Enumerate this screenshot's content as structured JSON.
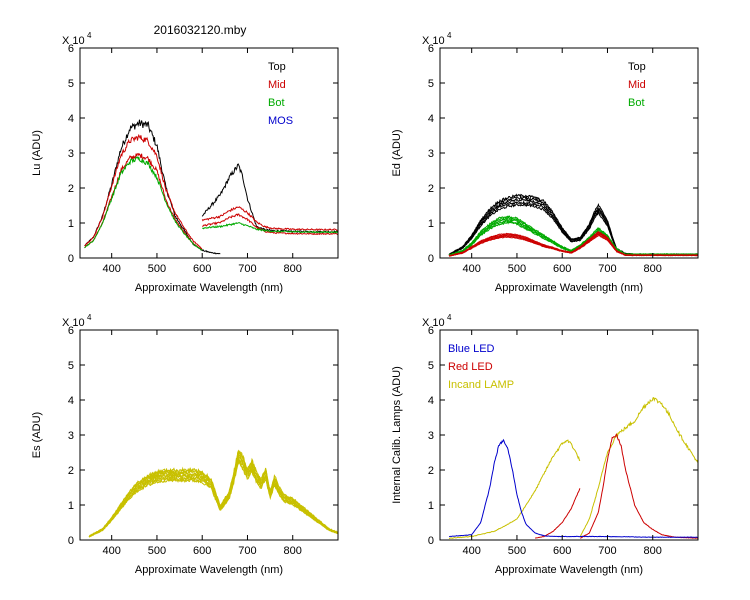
{
  "figure_title": "2016032120.mby",
  "chart_data": [
    {
      "id": "lu",
      "type": "line",
      "title": "2016032120.mby",
      "xlabel": "Approximate Wavelength (nm)",
      "ylabel": "Lu (ADU)",
      "multiplier": "X 10",
      "exponent": "4",
      "xlim": [
        330,
        900
      ],
      "ylim": [
        0,
        6
      ],
      "xticks": [
        400,
        500,
        600,
        700,
        800
      ],
      "yticks": [
        0,
        1,
        2,
        3,
        4,
        5,
        6
      ],
      "legend": [
        {
          "label": "Top",
          "color": "#000000"
        },
        {
          "label": "Mid",
          "color": "#cc0000"
        },
        {
          "label": "Bot",
          "color": "#00aa00"
        },
        {
          "label": "MOS",
          "color": "#0000cc"
        }
      ],
      "series": [
        {
          "name": "Top",
          "color": "#000000",
          "jitter": 0.06,
          "copies": 1,
          "segments": [
            {
              "x": [
                340,
                360,
                380,
                400,
                420,
                440,
                460,
                480,
                500,
                520,
                540,
                560,
                580,
                600,
                620,
                640
              ],
              "y": [
                0.35,
                0.6,
                1.2,
                2.1,
                3.1,
                3.7,
                3.85,
                3.8,
                3.2,
                2.0,
                1.2,
                0.8,
                0.4,
                0.22,
                0.15,
                0.12
              ]
            },
            {
              "x": [
                600,
                620,
                640,
                660,
                680,
                690,
                700,
                720,
                740,
                760,
                800,
                850,
                900
              ],
              "y": [
                1.2,
                1.5,
                1.8,
                2.3,
                2.65,
                2.3,
                1.7,
                0.9,
                0.8,
                0.78,
                0.76,
                0.75,
                0.75
              ]
            }
          ]
        },
        {
          "name": "Mid",
          "color": "#cc0000",
          "jitter": 0.05,
          "copies": 2,
          "segments": [
            {
              "x": [
                340,
                360,
                380,
                400,
                420,
                440,
                460,
                480,
                500,
                520,
                540,
                560,
                580,
                600
              ],
              "y": [
                0.33,
                0.55,
                1.1,
                1.9,
                2.7,
                3.1,
                3.2,
                3.1,
                2.7,
                1.8,
                1.2,
                0.8,
                0.45,
                0.25
              ]
            },
            {
              "x": [
                600,
                620,
                640,
                660,
                680,
                700,
                720,
                740,
                760,
                800,
                850,
                900
              ],
              "y": [
                1.0,
                1.05,
                1.1,
                1.25,
                1.35,
                1.2,
                0.95,
                0.82,
                0.78,
                0.76,
                0.75,
                0.75
              ]
            }
          ]
        },
        {
          "name": "Bot",
          "color": "#00aa00",
          "jitter": 0.05,
          "copies": 1,
          "segments": [
            {
              "x": [
                340,
                360,
                380,
                400,
                420,
                440,
                460,
                480,
                500,
                520,
                540,
                560,
                580,
                600
              ],
              "y": [
                0.3,
                0.5,
                1.0,
                1.7,
                2.4,
                2.75,
                2.85,
                2.7,
                2.3,
                1.6,
                1.05,
                0.7,
                0.4,
                0.22
              ]
            },
            {
              "x": [
                600,
                620,
                640,
                660,
                680,
                700,
                720,
                740,
                760,
                800,
                850,
                900
              ],
              "y": [
                0.85,
                0.88,
                0.9,
                0.95,
                1.0,
                0.92,
                0.82,
                0.78,
                0.76,
                0.75,
                0.74,
                0.74
              ]
            }
          ]
        }
      ]
    },
    {
      "id": "ed",
      "type": "line",
      "xlabel": "Approximate Wavelength (nm)",
      "ylabel": "Ed  (ADU)",
      "multiplier": "X 10",
      "exponent": "4",
      "xlim": [
        330,
        900
      ],
      "ylim": [
        0,
        6
      ],
      "xticks": [
        400,
        500,
        600,
        700,
        800
      ],
      "yticks": [
        0,
        1,
        2,
        3,
        4,
        5,
        6
      ],
      "legend": [
        {
          "label": "Top",
          "color": "#000000"
        },
        {
          "label": "Mid",
          "color": "#cc0000"
        },
        {
          "label": "Bot",
          "color": "#00aa00"
        }
      ],
      "series": [
        {
          "name": "Top",
          "color": "#000000",
          "jitter": 0.04,
          "copies": 5,
          "segments": [
            {
              "x": [
                350,
                380,
                400,
                420,
                440,
                460,
                480,
                500,
                520,
                540,
                560,
                580,
                600,
                620,
                640,
                660,
                670,
                680,
                690,
                700,
                710,
                720,
                740,
                760,
                800,
                850,
                900
              ],
              "y": [
                0.1,
                0.3,
                0.6,
                1.0,
                1.3,
                1.5,
                1.6,
                1.65,
                1.65,
                1.6,
                1.5,
                1.2,
                0.8,
                0.5,
                0.55,
                0.9,
                1.2,
                1.4,
                1.2,
                1.0,
                0.6,
                0.25,
                0.12,
                0.1,
                0.1,
                0.1,
                0.1
              ]
            }
          ]
        },
        {
          "name": "Bot",
          "color": "#00aa00",
          "jitter": 0.05,
          "copies": 5,
          "segments": [
            {
              "x": [
                350,
                380,
                400,
                420,
                440,
                460,
                480,
                500,
                520,
                540,
                560,
                580,
                600,
                620,
                640,
                660,
                680,
                700,
                720,
                740,
                800,
                900
              ],
              "y": [
                0.08,
                0.2,
                0.4,
                0.7,
                0.9,
                1.05,
                1.1,
                1.05,
                0.9,
                0.75,
                0.6,
                0.45,
                0.3,
                0.2,
                0.35,
                0.55,
                0.8,
                0.6,
                0.25,
                0.1,
                0.1,
                0.1
              ]
            }
          ]
        },
        {
          "name": "Mid",
          "color": "#cc0000",
          "jitter": 0.03,
          "copies": 5,
          "segments": [
            {
              "x": [
                350,
                380,
                400,
                420,
                440,
                460,
                480,
                500,
                520,
                540,
                560,
                580,
                600,
                620,
                640,
                660,
                680,
                700,
                720,
                740,
                800,
                900
              ],
              "y": [
                0.06,
                0.15,
                0.3,
                0.45,
                0.55,
                0.62,
                0.65,
                0.62,
                0.55,
                0.45,
                0.35,
                0.28,
                0.2,
                0.15,
                0.3,
                0.5,
                0.7,
                0.55,
                0.2,
                0.08,
                0.08,
                0.08
              ]
            }
          ]
        }
      ]
    },
    {
      "id": "es",
      "type": "line",
      "xlabel": "Approximate Wavelength (nm)",
      "ylabel": "Es  (ADU)",
      "multiplier": "X 10",
      "exponent": "4",
      "xlim": [
        330,
        900
      ],
      "ylim": [
        0,
        6
      ],
      "xticks": [
        400,
        500,
        600,
        700,
        800
      ],
      "yticks": [
        0,
        1,
        2,
        3,
        4,
        5,
        6
      ],
      "legend": [],
      "series": [
        {
          "name": "Es",
          "color": "#c8c000",
          "jitter": 0.05,
          "copies": 9,
          "segments": [
            {
              "x": [
                350,
                380,
                400,
                420,
                440,
                460,
                480,
                500,
                520,
                540,
                560,
                580,
                600,
                620,
                640,
                660,
                670,
                680,
                690,
                700,
                710,
                720,
                730,
                740,
                750,
                760,
                770,
                780,
                800,
                820,
                840,
                860,
                880,
                900
              ],
              "y": [
                0.1,
                0.3,
                0.6,
                0.95,
                1.3,
                1.55,
                1.7,
                1.8,
                1.85,
                1.85,
                1.85,
                1.85,
                1.8,
                1.6,
                0.9,
                1.3,
                1.8,
                2.4,
                2.2,
                1.9,
                2.1,
                1.8,
                1.6,
                1.9,
                1.3,
                1.7,
                1.4,
                1.2,
                1.1,
                0.9,
                0.7,
                0.5,
                0.3,
                0.2
              ]
            }
          ]
        }
      ]
    },
    {
      "id": "lamps",
      "type": "line",
      "xlabel": "Approximate Wavelength (nm)",
      "ylabel": "Internal Calib. Lamps  (ADU)",
      "multiplier": "X 10",
      "exponent": "4",
      "xlim": [
        330,
        900
      ],
      "ylim": [
        0,
        6
      ],
      "xticks": [
        400,
        500,
        600,
        700,
        800
      ],
      "yticks": [
        0,
        1,
        2,
        3,
        4,
        5,
        6
      ],
      "legend": [
        {
          "label": "Blue LED",
          "color": "#0000cc"
        },
        {
          "label": "Red LED",
          "color": "#cc0000"
        },
        {
          "label": "Incand LAMP",
          "color": "#c8c000"
        }
      ],
      "series": [
        {
          "name": "Incand LAMP",
          "color": "#c8c000",
          "jitter": 0.03,
          "copies": 1,
          "segments": [
            {
              "x": [
                350,
                400,
                450,
                480,
                500,
                520,
                540,
                560,
                580,
                600,
                610,
                620,
                630,
                640
              ],
              "y": [
                0.05,
                0.1,
                0.25,
                0.45,
                0.6,
                1.0,
                1.4,
                1.9,
                2.4,
                2.75,
                2.85,
                2.75,
                2.5,
                2.25
              ]
            },
            {
              "x": [
                640,
                660,
                680,
                700,
                720,
                740,
                760,
                780,
                800,
                820,
                840,
                860,
                880,
                900
              ],
              "y": [
                0.1,
                0.6,
                1.5,
                2.5,
                3.0,
                3.2,
                3.4,
                3.8,
                4.05,
                3.9,
                3.5,
                3.0,
                2.6,
                2.2
              ]
            }
          ]
        },
        {
          "name": "Red LED",
          "color": "#cc0000",
          "jitter": 0.02,
          "copies": 1,
          "segments": [
            {
              "x": [
                540,
                560,
                580,
                600,
                620,
                640
              ],
              "y": [
                0.05,
                0.1,
                0.25,
                0.5,
                0.9,
                1.5
              ]
            },
            {
              "x": [
                640,
                660,
                680,
                690,
                700,
                710,
                720,
                730,
                740,
                760,
                780,
                800,
                820,
                850,
                900
              ],
              "y": [
                0.05,
                0.2,
                0.8,
                1.5,
                2.3,
                2.9,
                3.0,
                2.7,
                2.0,
                1.0,
                0.5,
                0.3,
                0.15,
                0.08,
                0.05
              ]
            }
          ]
        },
        {
          "name": "Blue LED",
          "color": "#0000cc",
          "jitter": 0.02,
          "copies": 1,
          "segments": [
            {
              "x": [
                350,
                400,
                420,
                440,
                450,
                460,
                470,
                480,
                490,
                500,
                510,
                520,
                540,
                560,
                580,
                600,
                650,
                700,
                800,
                900
              ],
              "y": [
                0.1,
                0.15,
                0.5,
                1.5,
                2.2,
                2.7,
                2.85,
                2.6,
                2.0,
                1.3,
                0.8,
                0.45,
                0.2,
                0.12,
                0.1,
                0.1,
                0.1,
                0.1,
                0.08,
                0.08
              ]
            }
          ]
        }
      ]
    }
  ]
}
